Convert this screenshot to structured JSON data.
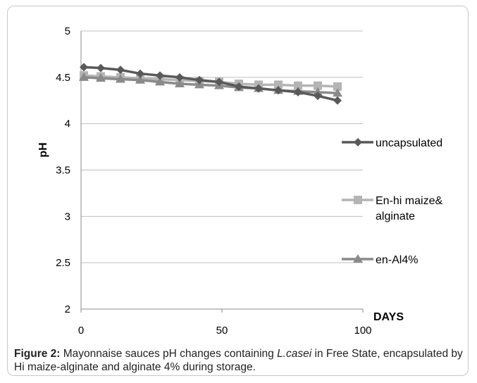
{
  "chart_data": {
    "type": "line",
    "title": "",
    "xlabel": "DAYS",
    "ylabel": "pH",
    "xlim": [
      0,
      100
    ],
    "ylim": [
      2,
      5
    ],
    "x_ticks": [
      "0",
      "50",
      "100"
    ],
    "y_ticks": [
      "2",
      "2.5",
      "3",
      "3.5",
      "4",
      "4.5",
      "5"
    ],
    "grid": "horizontal",
    "legend_placement": "right",
    "x": [
      1,
      7,
      14,
      21,
      28,
      35,
      42,
      49,
      56,
      63,
      70,
      77,
      84,
      91
    ],
    "series": [
      {
        "name": "uncapsulated",
        "color": "#595959",
        "marker": "diamond",
        "values": [
          4.61,
          4.6,
          4.58,
          4.54,
          4.52,
          4.5,
          4.47,
          4.45,
          4.4,
          4.38,
          4.36,
          4.34,
          4.3,
          4.25
        ]
      },
      {
        "name": "En-hi maize& alginate",
        "color": "#b4b4b4",
        "marker": "square",
        "values": [
          4.52,
          4.51,
          4.5,
          4.49,
          4.48,
          4.47,
          4.46,
          4.45,
          4.43,
          4.42,
          4.42,
          4.41,
          4.41,
          4.4
        ]
      },
      {
        "name": "en-Al4%",
        "color": "#8a8a8a",
        "marker": "triangle",
        "values": [
          4.5,
          4.49,
          4.48,
          4.47,
          4.45,
          4.43,
          4.42,
          4.41,
          4.39,
          4.38,
          4.36,
          4.35,
          4.34,
          4.33
        ]
      }
    ]
  },
  "caption": {
    "label": "Figure 2:",
    "text_a": " Mayonnaise sauces pH changes containing ",
    "organism": "L.casei",
    "text_b": " in Free State, encapsulated by Hi maize-alginate and alginate 4% during storage."
  }
}
